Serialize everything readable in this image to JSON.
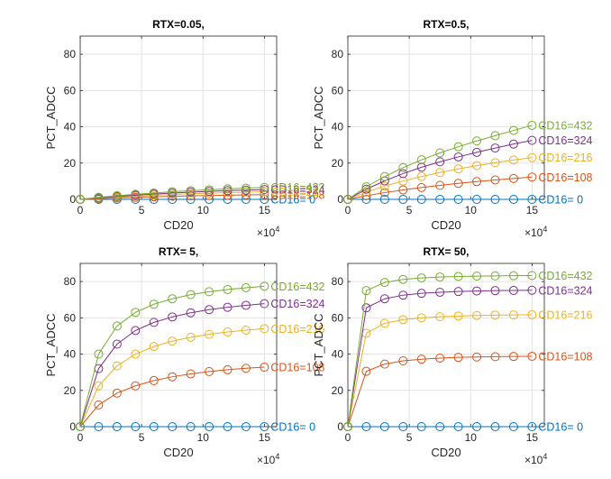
{
  "chart_data": [
    {
      "type": "line",
      "title": "RTX=0.05,",
      "xlabel": "CD20",
      "ylabel": "PCT_ADCC",
      "x_exponent_label": "×10",
      "x_exponent_power": "4",
      "xlim": [
        0,
        160000
      ],
      "ylim": [
        0,
        90
      ],
      "xticks": [
        0,
        50000,
        100000,
        150000
      ],
      "xtick_labels": [
        "0",
        "5",
        "10",
        "15"
      ],
      "yticks": [
        0,
        20,
        40,
        60,
        80
      ],
      "ytick_labels": [
        "0",
        "20",
        "40",
        "60",
        "80"
      ],
      "grid": true,
      "x": [
        0,
        15000,
        30000,
        45000,
        60000,
        75000,
        90000,
        105000,
        120000,
        135000,
        150000
      ],
      "series": [
        {
          "label": "CD16=  0",
          "color": "#0072BD",
          "values": [
            0,
            0,
            0,
            0,
            0,
            0,
            0,
            0,
            0,
            0,
            0
          ]
        },
        {
          "label": "CD16=108",
          "color": "#D95319",
          "values": [
            0,
            0.4,
            0.8,
            1.1,
            1.4,
            1.7,
            1.9,
            2.1,
            2.3,
            2.5,
            2.6
          ]
        },
        {
          "label": "CD16=216",
          "color": "#EDB120",
          "values": [
            0,
            0.7,
            1.3,
            1.8,
            2.3,
            2.7,
            3.1,
            3.4,
            3.7,
            4.0,
            4.2
          ]
        },
        {
          "label": "CD16=324",
          "color": "#7E2F8E",
          "values": [
            0,
            0.9,
            1.7,
            2.3,
            2.9,
            3.5,
            4.0,
            4.4,
            4.8,
            5.1,
            5.4
          ]
        },
        {
          "label": "CD16=432",
          "color": "#77AC30",
          "values": [
            0,
            1.1,
            2.0,
            2.8,
            3.5,
            4.2,
            4.8,
            5.3,
            5.8,
            6.2,
            6.6
          ]
        }
      ]
    },
    {
      "type": "line",
      "title": "RTX=0.5,",
      "xlabel": "CD20",
      "ylabel": "PCT_ADCC",
      "x_exponent_label": "×10",
      "x_exponent_power": "4",
      "xlim": [
        0,
        160000
      ],
      "ylim": [
        0,
        90
      ],
      "xticks": [
        0,
        50000,
        100000,
        150000
      ],
      "xtick_labels": [
        "0",
        "5",
        "10",
        "15"
      ],
      "yticks": [
        0,
        20,
        40,
        60,
        80
      ],
      "ytick_labels": [
        "0",
        "20",
        "40",
        "60",
        "80"
      ],
      "grid": true,
      "x": [
        0,
        15000,
        30000,
        45000,
        60000,
        75000,
        90000,
        105000,
        120000,
        135000,
        150000
      ],
      "series": [
        {
          "label": "CD16=  0",
          "color": "#0072BD",
          "values": [
            0,
            0,
            0,
            0,
            0,
            0,
            0,
            0,
            0,
            0,
            0
          ]
        },
        {
          "label": "CD16=108",
          "color": "#D95319",
          "values": [
            0,
            2.0,
            3.7,
            5.2,
            6.5,
            7.7,
            8.8,
            9.8,
            10.7,
            11.5,
            12.3
          ]
        },
        {
          "label": "CD16=216",
          "color": "#EDB120",
          "values": [
            0,
            4.0,
            7.3,
            10.1,
            12.6,
            14.8,
            16.8,
            18.6,
            20.2,
            21.7,
            23.0
          ]
        },
        {
          "label": "CD16=324",
          "color": "#7E2F8E",
          "values": [
            0,
            5.6,
            10.2,
            14.2,
            17.7,
            20.7,
            23.4,
            25.9,
            28.3,
            30.5,
            32.5
          ]
        },
        {
          "label": "CD16=432",
          "color": "#77AC30",
          "values": [
            0,
            6.9,
            12.6,
            17.5,
            21.8,
            25.6,
            29.0,
            32.2,
            35.1,
            38.0,
            40.8
          ]
        }
      ]
    },
    {
      "type": "line",
      "title": "RTX=  5,",
      "xlabel": "CD20",
      "ylabel": "PCT_ADCC",
      "x_exponent_label": "×10",
      "x_exponent_power": "4",
      "xlim": [
        0,
        160000
      ],
      "ylim": [
        0,
        90
      ],
      "xticks": [
        0,
        50000,
        100000,
        150000
      ],
      "xtick_labels": [
        "0",
        "5",
        "10",
        "15"
      ],
      "yticks": [
        0,
        20,
        40,
        60,
        80
      ],
      "ytick_labels": [
        "0",
        "20",
        "40",
        "60",
        "80"
      ],
      "grid": true,
      "x": [
        0,
        15000,
        30000,
        45000,
        60000,
        75000,
        90000,
        105000,
        120000,
        135000,
        150000
      ],
      "series": [
        {
          "label": "CD16=  0",
          "color": "#0072BD",
          "values": [
            0,
            0,
            0,
            0,
            0,
            0,
            0,
            0,
            0,
            0,
            0
          ]
        },
        {
          "label": "CD16=108",
          "color": "#D95319",
          "values": [
            0,
            12.0,
            18.5,
            22.5,
            25.4,
            27.5,
            29.1,
            30.4,
            31.4,
            32.2,
            32.8
          ]
        },
        {
          "label": "CD16=216",
          "color": "#EDB120",
          "values": [
            0,
            22.5,
            33.5,
            40.0,
            44.2,
            47.2,
            49.3,
            50.9,
            52.2,
            53.2,
            54.0
          ]
        },
        {
          "label": "CD16=324",
          "color": "#7E2F8E",
          "values": [
            0,
            32.0,
            45.5,
            53.0,
            57.5,
            60.5,
            62.8,
            64.5,
            65.8,
            66.9,
            67.8
          ]
        },
        {
          "label": "CD16=432",
          "color": "#77AC30",
          "values": [
            0,
            40.0,
            55.5,
            63.0,
            67.5,
            70.5,
            72.8,
            74.4,
            75.6,
            76.6,
            77.4
          ]
        }
      ]
    },
    {
      "type": "line",
      "title": "RTX= 50,",
      "xlabel": "CD20",
      "ylabel": "PCT_ADCC",
      "x_exponent_label": "×10",
      "x_exponent_power": "4",
      "xlim": [
        0,
        160000
      ],
      "ylim": [
        0,
        90
      ],
      "xticks": [
        0,
        50000,
        100000,
        150000
      ],
      "xtick_labels": [
        "0",
        "5",
        "10",
        "15"
      ],
      "yticks": [
        0,
        20,
        40,
        60,
        80
      ],
      "ytick_labels": [
        "0",
        "20",
        "40",
        "60",
        "80"
      ],
      "grid": true,
      "x": [
        0,
        15000,
        30000,
        45000,
        60000,
        75000,
        90000,
        105000,
        120000,
        135000,
        150000
      ],
      "series": [
        {
          "label": "CD16=  0",
          "color": "#0072BD",
          "values": [
            0,
            0,
            0,
            0,
            0,
            0,
            0,
            0,
            0,
            0,
            0
          ]
        },
        {
          "label": "CD16=108",
          "color": "#D95319",
          "values": [
            0,
            30.5,
            34.5,
            36.3,
            37.2,
            37.8,
            38.2,
            38.4,
            38.6,
            38.7,
            38.8
          ]
        },
        {
          "label": "CD16=216",
          "color": "#EDB120",
          "values": [
            0,
            51.5,
            57.0,
            59.0,
            60.0,
            60.6,
            61.0,
            61.3,
            61.5,
            61.6,
            61.7
          ]
        },
        {
          "label": "CD16=324",
          "color": "#7E2F8E",
          "values": [
            0,
            65.5,
            70.5,
            72.5,
            73.5,
            74.1,
            74.5,
            74.8,
            75.0,
            75.1,
            75.2
          ]
        },
        {
          "label": "CD16=432",
          "color": "#77AC30",
          "values": [
            0,
            75.0,
            79.5,
            81.2,
            82.0,
            82.5,
            82.8,
            83.0,
            83.1,
            83.2,
            83.3
          ]
        }
      ]
    }
  ]
}
